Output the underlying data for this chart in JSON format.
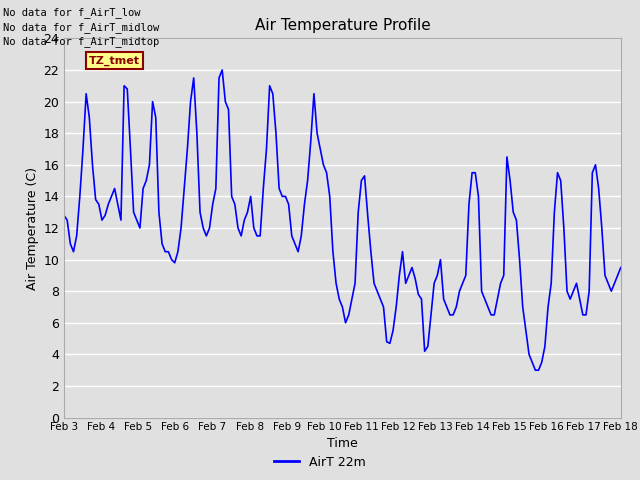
{
  "title": "Air Temperature Profile",
  "xlabel": "Time",
  "ylabel": "Air Temperature (C)",
  "ylim": [
    0,
    24
  ],
  "yticks": [
    0,
    2,
    4,
    6,
    8,
    10,
    12,
    14,
    16,
    18,
    20,
    22,
    24
  ],
  "line_color": "blue",
  "line_width": 1.2,
  "fig_bg_color": "#e0e0e0",
  "plot_bg_color": "#e0e0e0",
  "grid_color": "white",
  "annotations": [
    "No data for f_AirT_low",
    "No data for f_AirT_midlow",
    "No data for f_AirT_midtop"
  ],
  "tz_label": "TZ_tmet",
  "legend_label": "AirT 22m",
  "x_labels": [
    "Feb 3",
    "Feb 4",
    "Feb 5",
    "Feb 6",
    "Feb 7",
    "Feb 8",
    "Feb 9",
    "Feb 10",
    "Feb 11",
    "Feb 12",
    "Feb 13",
    "Feb 14",
    "Feb 15",
    "Feb 16",
    "Feb 17",
    "Feb 18"
  ],
  "temp_data": [
    12.8,
    12.5,
    11.0,
    10.5,
    11.5,
    14.0,
    17.0,
    20.5,
    19.0,
    16.0,
    13.8,
    13.5,
    12.5,
    12.8,
    13.5,
    14.0,
    14.5,
    13.5,
    12.5,
    21.0,
    20.8,
    17.0,
    13.0,
    12.5,
    12.0,
    14.5,
    15.0,
    16.0,
    20.0,
    19.0,
    13.0,
    11.0,
    10.5,
    10.5,
    10.0,
    9.8,
    10.5,
    12.0,
    14.5,
    17.0,
    20.0,
    21.5,
    18.0,
    13.0,
    12.0,
    11.5,
    12.0,
    13.5,
    14.5,
    21.5,
    22.0,
    20.0,
    19.5,
    14.0,
    13.5,
    12.0,
    11.5,
    12.5,
    13.0,
    14.0,
    12.0,
    11.5,
    11.5,
    14.5,
    17.0,
    21.0,
    20.5,
    18.0,
    14.5,
    14.0,
    14.0,
    13.5,
    11.5,
    11.0,
    10.5,
    11.5,
    13.5,
    15.0,
    17.5,
    20.5,
    18.0,
    17.0,
    16.0,
    15.5,
    14.0,
    10.5,
    8.5,
    7.5,
    7.0,
    6.0,
    6.5,
    7.5,
    8.5,
    13.0,
    15.0,
    15.3,
    12.8,
    10.5,
    8.5,
    8.0,
    7.5,
    7.0,
    4.8,
    4.7,
    5.5,
    7.0,
    9.0,
    10.5,
    8.5,
    9.0,
    9.5,
    8.8,
    7.8,
    7.5,
    4.2,
    4.5,
    6.5,
    8.5,
    9.0,
    10.0,
    7.5,
    7.0,
    6.5,
    6.5,
    7.0,
    8.0,
    8.5,
    9.0,
    13.5,
    15.5,
    15.5,
    14.0,
    8.0,
    7.5,
    7.0,
    6.5,
    6.5,
    7.5,
    8.5,
    9.0,
    16.5,
    15.0,
    13.0,
    12.5,
    10.0,
    7.0,
    5.5,
    4.0,
    3.5,
    3.0,
    3.0,
    3.5,
    4.5,
    7.0,
    8.5,
    13.0,
    15.5,
    15.0,
    12.0,
    8.0,
    7.5,
    8.0,
    8.5,
    7.5,
    6.5,
    6.5,
    8.0,
    15.5,
    16.0,
    14.5,
    12.0,
    9.0,
    8.5,
    8.0,
    8.5,
    9.0,
    9.5
  ]
}
